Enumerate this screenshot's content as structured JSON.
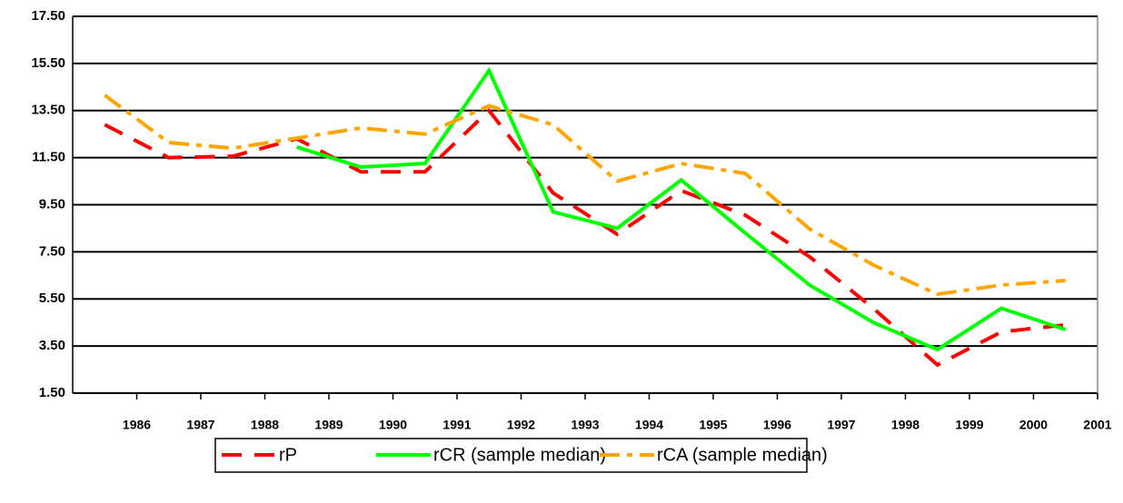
{
  "chart_data": {
    "type": "line",
    "categories": [
      "1986",
      "1987",
      "1988",
      "1989",
      "1990",
      "1991",
      "1992",
      "1993",
      "1994",
      "1995",
      "1996",
      "1997",
      "1998",
      "1999",
      "2000",
      "2001"
    ],
    "series": [
      {
        "name": "rP",
        "color": "#ff0000",
        "dash": "22,14",
        "values": [
          12.9,
          11.5,
          11.56,
          12.3,
          10.9,
          10.9,
          13.5,
          10.0,
          8.25,
          10.1,
          9.06,
          7.3,
          5.1,
          2.7,
          4.1,
          4.4
        ]
      },
      {
        "name": "rCR (sample median)",
        "color": "#00ff00",
        "dash": "",
        "values": [
          null,
          null,
          null,
          11.95,
          11.1,
          11.25,
          15.2,
          9.2,
          8.5,
          10.55,
          8.3,
          6.1,
          4.5,
          3.35,
          5.1,
          4.2
        ]
      },
      {
        "name": "rCA (sample median)",
        "color": "#ffa500",
        "dash": "22,8,6,8",
        "values": [
          14.15,
          12.14,
          11.9,
          12.33,
          12.76,
          12.5,
          13.7,
          12.9,
          10.5,
          11.25,
          10.83,
          8.48,
          6.94,
          5.7,
          6.09,
          6.28
        ]
      }
    ],
    "ylim": [
      1.5,
      17.5
    ],
    "yticks": [
      {
        "value": 1.5,
        "label": "1.50"
      },
      {
        "value": 3.5,
        "label": "3.50"
      },
      {
        "value": 5.5,
        "label": "5.50"
      },
      {
        "value": 7.5,
        "label": "7.50"
      },
      {
        "value": 9.5,
        "label": "9.50"
      },
      {
        "value": 11.5,
        "label": "11.50"
      },
      {
        "value": 13.5,
        "label": "13.50"
      },
      {
        "value": 15.5,
        "label": "15.50"
      },
      {
        "value": 17.5,
        "label": "17.50"
      }
    ],
    "grid": true
  }
}
